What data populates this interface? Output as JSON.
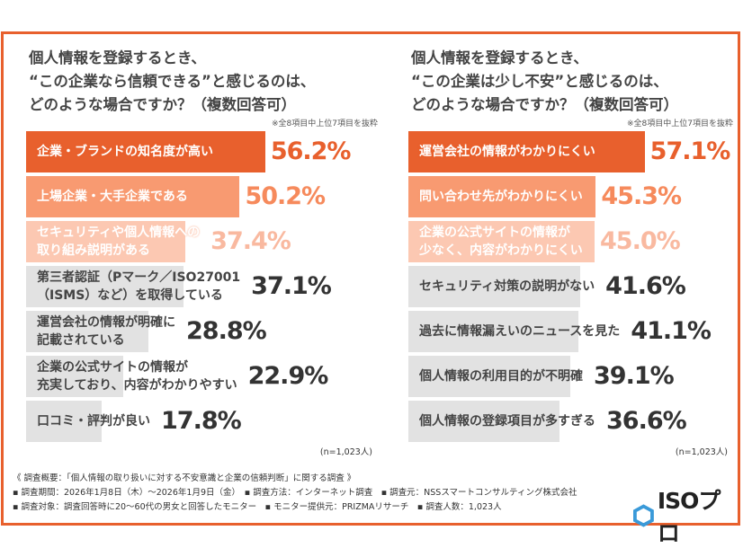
{
  "left": {
    "question": "個人情報を登録するとき、\n“この企業なら信頼できる”と感じるのは、\nどのような場合ですか？（複数回答可）",
    "note": "※全8項目中上位7項目を抜粋",
    "n": "(n=1,023人)",
    "items": [
      {
        "label": "企業・ブランドの知名度が高い",
        "value": 56.2,
        "pct": "56.2%",
        "bar": "#e8602d",
        "pct_color": "#e8602d",
        "text": "#fff"
      },
      {
        "label": "上場企業・大手企業である",
        "value": 50.2,
        "pct": "50.2%",
        "bar": "#f89a71",
        "pct_color": "#f68a5c",
        "text": "#fff"
      },
      {
        "label": "セキュリティや個人情報への\n取り組み説明がある",
        "value": 37.4,
        "pct": "37.4%",
        "bar": "#fcc8b2",
        "pct_color": "#f9b9a0",
        "text": "#fff"
      },
      {
        "label": "第三者認証（Pマーク／ISO27001\n（ISMS）など）を取得している",
        "value": 37.1,
        "pct": "37.1%",
        "bar": "#e2e2e2",
        "pct_color": "#333",
        "text": "#444"
      },
      {
        "label": "運営会社の情報が明確に\n記載されている",
        "value": 28.8,
        "pct": "28.8%",
        "bar": "#e2e2e2",
        "pct_color": "#333",
        "text": "#444"
      },
      {
        "label": "企業の公式サイトの情報が\n充実しており、内容がわかりやすい",
        "value": 22.9,
        "pct": "22.9%",
        "bar": "#e2e2e2",
        "pct_color": "#333",
        "text": "#444"
      },
      {
        "label": "口コミ・評判が良い",
        "value": 17.8,
        "pct": "17.8%",
        "bar": "#e2e2e2",
        "pct_color": "#333",
        "text": "#444"
      }
    ]
  },
  "right": {
    "question": "個人情報を登録するとき、\n“この企業は少し不安”と感じるのは、\nどのような場合ですか？（複数回答可）",
    "note": "※全8項目中上位7項目を抜粋",
    "n": "(n=1,023人)",
    "items": [
      {
        "label": "運営会社の情報がわかりにくい",
        "value": 57.1,
        "pct": "57.1%",
        "bar": "#e8602d",
        "pct_color": "#e8602d",
        "text": "#fff"
      },
      {
        "label": "問い合わせ先がわかりにくい",
        "value": 45.3,
        "pct": "45.3%",
        "bar": "#f89a71",
        "pct_color": "#f68a5c",
        "text": "#fff"
      },
      {
        "label": "企業の公式サイトの情報が\n少なく、内容がわかりにくい",
        "value": 45.0,
        "pct": "45.0%",
        "bar": "#fcc8b2",
        "pct_color": "#f9b9a0",
        "text": "#fff"
      },
      {
        "label": "セキュリティ対策の説明がない",
        "value": 41.6,
        "pct": "41.6%",
        "bar": "#e2e2e2",
        "pct_color": "#333",
        "text": "#444"
      },
      {
        "label": "過去に情報漏えいのニュースを見た",
        "value": 41.1,
        "pct": "41.1%",
        "bar": "#e2e2e2",
        "pct_color": "#333",
        "text": "#444"
      },
      {
        "label": "個人情報の利用目的が不明確",
        "value": 39.1,
        "pct": "39.1%",
        "bar": "#e2e2e2",
        "pct_color": "#333",
        "text": "#444"
      },
      {
        "label": "個人情報の登録項目が多すぎる",
        "value": 36.6,
        "pct": "36.6%",
        "bar": "#e2e2e2",
        "pct_color": "#333",
        "text": "#444"
      }
    ]
  },
  "footer": {
    "line1": "《 調査概要：「個人情報の取り扱いに対する不安意識と企業の信頼判断」に関する調査 》",
    "line2": "▪ 調査期間：2026年1月8日（木）～2026年1月9日（金）　▪ 調査方法：インターネット調査　▪ 調査元：NSSスマートコンサルティング株式会社",
    "line3": "▪ 調査対象：調査回答時に20～60代の男女と回答したモニター　▪ モニター提供元：PRIZMAリサーチ　▪ 調査人数：1,023人"
  },
  "logo": {
    "text": "ISOプロ",
    "icon": "hexagon-icon",
    "color": "#3a9ad9"
  },
  "accent": "#e8602d"
}
